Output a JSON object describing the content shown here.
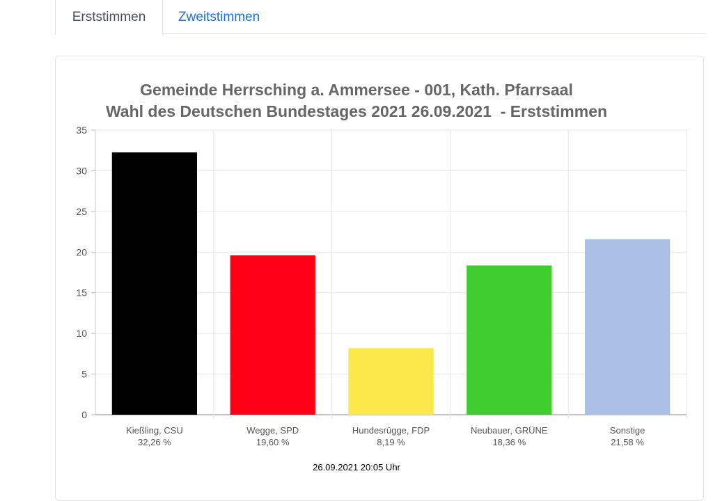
{
  "tabs": [
    {
      "label": "Erststimmen",
      "active": true
    },
    {
      "label": "Zweitstimmen",
      "active": false
    }
  ],
  "footer": {
    "timestamp": "26.09.2021 20:05 Uhr"
  },
  "chart_data": {
    "type": "bar",
    "title": [
      "Gemeinde Herrsching a. Ammersee - 001, Kath. Pfarrsaal",
      "Wahl des Deutschen Bundestages 2021 26.09.2021  - Erststimmen"
    ],
    "xlabel": "",
    "ylabel": "",
    "ylim": [
      0,
      35
    ],
    "yticks": [
      0,
      5,
      10,
      15,
      20,
      25,
      30,
      35
    ],
    "grid": true,
    "categories": [
      "Kießling, CSU",
      "Wegge, SPD",
      "Hundesrügge, FDP",
      "Neubauer, GRÜNE",
      "Sonstige"
    ],
    "value_labels": [
      "32,26 %",
      "19,60 %",
      "8,19 %",
      "18,36 %",
      "21,58 %"
    ],
    "values": [
      32.26,
      19.6,
      8.19,
      18.36,
      21.58
    ],
    "colors": [
      "#000000",
      "#ff0017",
      "#fbe94c",
      "#3fcc2e",
      "#aabfe4"
    ]
  }
}
